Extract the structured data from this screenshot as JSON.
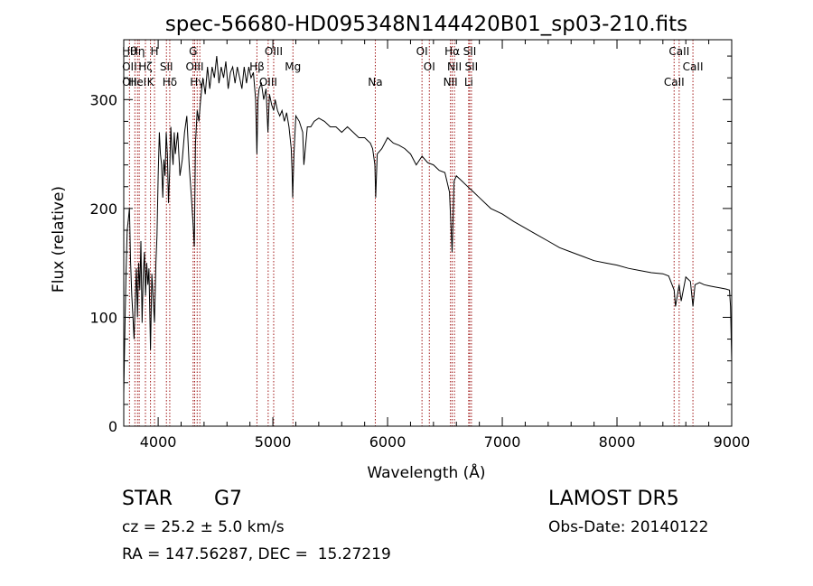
{
  "chart_data": {
    "type": "line",
    "title": "spec-56680-HD095348N144420B01_sp03-210.fits",
    "xlabel": "Wavelength (Å)",
    "ylabel": "Flux (relative)",
    "xlim": [
      3700,
      9000
    ],
    "ylim": [
      0,
      355
    ],
    "x_ticks": [
      4000,
      5000,
      6000,
      7000,
      8000,
      9000
    ],
    "y_ticks": [
      0,
      100,
      200,
      300
    ],
    "grid": false,
    "series": [
      {
        "x": [
          3700,
          3710,
          3720,
          3730,
          3740,
          3750,
          3760,
          3770,
          3780,
          3790,
          3800,
          3810,
          3820,
          3830,
          3840,
          3850,
          3860,
          3870,
          3880,
          3890,
          3900,
          3910,
          3920,
          3933,
          3945,
          3955,
          3968,
          3980,
          3990,
          4000,
          4010,
          4020,
          4030,
          4040,
          4050,
          4060,
          4070,
          4080,
          4090,
          4101,
          4110,
          4120,
          4130,
          4140,
          4150,
          4170,
          4190,
          4210,
          4230,
          4250,
          4270,
          4290,
          4305,
          4315,
          4325,
          4340,
          4355,
          4370,
          4390,
          4410,
          4430,
          4450,
          4470,
          4490,
          4510,
          4530,
          4550,
          4570,
          4590,
          4610,
          4630,
          4650,
          4670,
          4690,
          4710,
          4730,
          4750,
          4770,
          4790,
          4810,
          4830,
          4850,
          4861,
          4870,
          4880,
          4900,
          4920,
          4940,
          4957,
          4970,
          4990,
          5007,
          5020,
          5040,
          5060,
          5080,
          5100,
          5120,
          5140,
          5160,
          5167,
          5173,
          5184,
          5200,
          5230,
          5260,
          5270,
          5300,
          5330,
          5360,
          5400,
          5450,
          5500,
          5550,
          5600,
          5650,
          5700,
          5750,
          5800,
          5850,
          5870,
          5889,
          5896,
          5910,
          5950,
          6000,
          6050,
          6100,
          6150,
          6200,
          6250,
          6300,
          6350,
          6400,
          6450,
          6500,
          6540,
          6563,
          6580,
          6600,
          6650,
          6700,
          6750,
          6800,
          6900,
          7000,
          7100,
          7200,
          7300,
          7400,
          7500,
          7600,
          7700,
          7800,
          7900,
          8000,
          8100,
          8200,
          8300,
          8400,
          8450,
          8498,
          8510,
          8542,
          8560,
          8600,
          8640,
          8662,
          8680,
          8720,
          8760,
          8800,
          8850,
          8900,
          8950,
          8980,
          8990,
          9000
        ],
        "y": [
          30,
          90,
          140,
          180,
          190,
          200,
          150,
          120,
          100,
          80,
          115,
          145,
          100,
          150,
          125,
          170,
          95,
          140,
          160,
          120,
          150,
          130,
          145,
          70,
          140,
          120,
          95,
          150,
          175,
          230,
          270,
          250,
          240,
          210,
          245,
          230,
          270,
          250,
          205,
          235,
          275,
          255,
          240,
          270,
          250,
          270,
          230,
          245,
          270,
          285,
          240,
          210,
          185,
          165,
          260,
          290,
          280,
          300,
          320,
          305,
          330,
          310,
          330,
          320,
          340,
          315,
          330,
          320,
          335,
          310,
          325,
          330,
          315,
          330,
          320,
          310,
          330,
          315,
          330,
          320,
          325,
          300,
          250,
          300,
          310,
          315,
          300,
          310,
          270,
          305,
          295,
          290,
          300,
          290,
          285,
          290,
          280,
          288,
          275,
          255,
          235,
          210,
          250,
          285,
          280,
          270,
          240,
          275,
          275,
          280,
          283,
          280,
          275,
          275,
          270,
          275,
          270,
          265,
          265,
          260,
          255,
          240,
          210,
          250,
          255,
          265,
          260,
          258,
          255,
          250,
          240,
          248,
          242,
          240,
          235,
          233,
          215,
          160,
          225,
          230,
          225,
          220,
          215,
          210,
          200,
          195,
          188,
          182,
          176,
          170,
          164,
          160,
          156,
          152,
          150,
          148,
          145,
          143,
          141,
          140,
          138,
          125,
          110,
          130,
          115,
          137,
          133,
          110,
          130,
          132,
          130,
          129,
          128,
          127,
          126,
          125,
          110,
          60
        ]
      }
    ],
    "lines": [
      {
        "x": 3750,
        "labels": [
          "Hθ",
          "OII",
          "OII"
        ]
      },
      {
        "x": 3797,
        "labels": []
      },
      {
        "x": 3820,
        "labels": [
          "HeI",
          "Hη"
        ]
      },
      {
        "x": 3835,
        "labels": []
      },
      {
        "x": 3889,
        "labels": [
          "Hζ"
        ]
      },
      {
        "x": 3933,
        "labels": [
          "K"
        ]
      },
      {
        "x": 3968,
        "labels": [
          "H"
        ]
      },
      {
        "x": 4072,
        "labels": [
          "SII"
        ]
      },
      {
        "x": 4101,
        "labels": [
          "Hδ"
        ]
      },
      {
        "x": 4305,
        "labels": [
          "G"
        ]
      },
      {
        "x": 4318,
        "labels": [
          "OIII"
        ]
      },
      {
        "x": 4340,
        "labels": [
          "Hγ"
        ]
      },
      {
        "x": 4363,
        "labels": []
      },
      {
        "x": 4861,
        "labels": [
          "Hβ"
        ]
      },
      {
        "x": 4959,
        "labels": [
          "OIII"
        ]
      },
      {
        "x": 5007,
        "labels": [
          "OIII"
        ]
      },
      {
        "x": 5175,
        "labels": [
          "Mg"
        ]
      },
      {
        "x": 5893,
        "labels": [
          "Na"
        ]
      },
      {
        "x": 6300,
        "labels": [
          "OI"
        ]
      },
      {
        "x": 6364,
        "labels": [
          "OI"
        ]
      },
      {
        "x": 6548,
        "labels": [
          "NII"
        ]
      },
      {
        "x": 6563,
        "labels": [
          "Hα"
        ]
      },
      {
        "x": 6583,
        "labels": [
          "NII"
        ]
      },
      {
        "x": 6707,
        "labels": [
          "Li"
        ]
      },
      {
        "x": 6716,
        "labels": [
          "SII"
        ]
      },
      {
        "x": 6731,
        "labels": [
          "SII"
        ]
      },
      {
        "x": 8498,
        "labels": [
          "CaII"
        ]
      },
      {
        "x": 8542,
        "labels": [
          "CaII"
        ]
      },
      {
        "x": 8662,
        "labels": [
          "CaII"
        ]
      }
    ]
  },
  "info": {
    "class_label": "STAR",
    "subclass": "G7",
    "survey": "LAMOST DR5",
    "cz": "cz = 25.2 ± 5.0 km/s",
    "obs_date": "Obs-Date: 20140122",
    "coords": "RA = 147.56287, DEC =  15.27219"
  }
}
